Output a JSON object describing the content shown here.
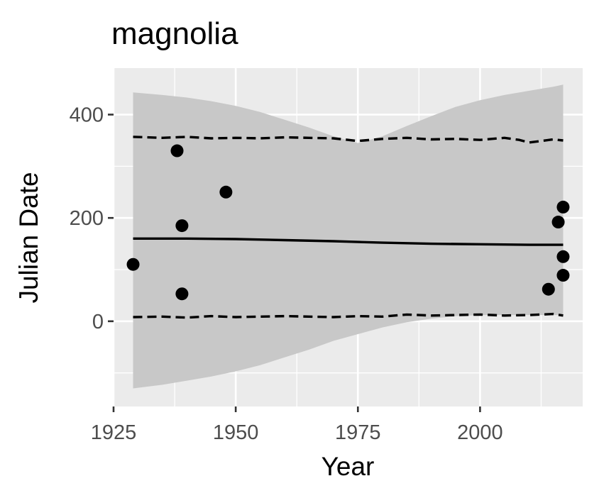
{
  "chart_data": {
    "type": "scatter",
    "title": "magnolia",
    "xlabel": "Year",
    "ylabel": "Julian Date",
    "xlim": [
      1925,
      2021
    ],
    "ylim": [
      -165,
      490
    ],
    "x_ticks": [
      1925,
      1950,
      1975,
      2000
    ],
    "y_ticks": [
      0,
      200,
      400
    ],
    "x_tick_labels": [
      "1925",
      "1950",
      "1975",
      "2000"
    ],
    "y_tick_labels": [
      "0",
      "200",
      "400"
    ],
    "grid": true,
    "legend": "none",
    "colors": {
      "panel_background": "#ebebeb",
      "grid": "#ffffff",
      "ribbon": "#c8c8c8",
      "points": "#000000",
      "lines": "#000000"
    },
    "points": {
      "x": [
        1929,
        1938,
        1939,
        1939,
        1948,
        2014,
        2016,
        2017,
        2017,
        2017
      ],
      "y": [
        110,
        330,
        185,
        53,
        250,
        62,
        192,
        221,
        125,
        89
      ]
    },
    "fit_line": {
      "x": [
        1929,
        1940,
        1950,
        1960,
        1970,
        1980,
        1990,
        2000,
        2010,
        2017
      ],
      "y": [
        160,
        160,
        159,
        157,
        155,
        152,
        150,
        149,
        148,
        148
      ]
    },
    "interval_upper": {
      "x": [
        1929,
        1935,
        1940,
        1945,
        1950,
        1955,
        1960,
        1965,
        1970,
        1975,
        1980,
        1985,
        1990,
        1995,
        2000,
        2005,
        2008,
        2010,
        2015,
        2017
      ],
      "y": [
        357,
        355,
        357,
        354,
        355,
        354,
        356,
        355,
        354,
        349,
        353,
        355,
        352,
        353,
        351,
        355,
        351,
        346,
        352,
        350
      ]
    },
    "interval_lower": {
      "x": [
        1929,
        1935,
        1940,
        1945,
        1950,
        1955,
        1960,
        1965,
        1970,
        1975,
        1980,
        1985,
        1990,
        1995,
        2000,
        2005,
        2010,
        2015,
        2017
      ],
      "y": [
        8,
        9,
        7,
        10,
        8,
        9,
        10,
        9,
        8,
        10,
        9,
        13,
        11,
        12,
        13,
        11,
        12,
        14,
        11
      ]
    },
    "ribbon": {
      "x": [
        1929,
        1935,
        1940,
        1945,
        1950,
        1955,
        1960,
        1965,
        1970,
        1975,
        1980,
        1985,
        1990,
        1995,
        2000,
        2005,
        2010,
        2015,
        2017
      ],
      "upper": [
        443,
        438,
        433,
        426,
        417,
        405,
        390,
        375,
        358,
        345,
        358,
        378,
        397,
        415,
        428,
        438,
        446,
        454,
        458
      ],
      "lower": [
        -130,
        -123,
        -115,
        -107,
        -97,
        -85,
        -70,
        -55,
        -38,
        -25,
        -12,
        -2,
        5,
        10,
        12,
        12,
        12,
        12,
        12
      ]
    }
  }
}
